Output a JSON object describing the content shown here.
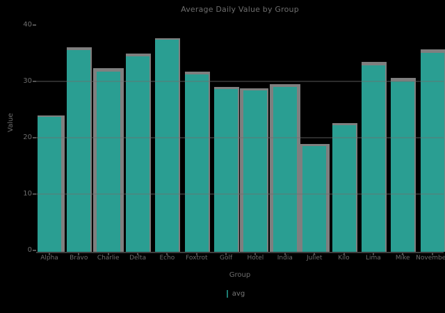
{
  "colors": {
    "background": "#000000",
    "bar_fill": "#2a9e92",
    "bar_shadow": "#7f7f7f",
    "text": "#6e6e6e",
    "axis_line": "#3d3d3d",
    "gridline": "#6e6e6e"
  },
  "chart_data": {
    "type": "bar",
    "title": "Average Daily Value by Group",
    "xlabel": "Group",
    "ylabel": "Value",
    "categories": [
      "Alpha",
      "Bravo",
      "Charlie",
      "Delta",
      "Echo",
      "Foxtrot",
      "Golf",
      "Hotel",
      "India",
      "Juliet",
      "Kilo",
      "Lima",
      "Mike",
      "November"
    ],
    "series": [
      {
        "name": "avg",
        "color": "#2a9e92",
        "values": [
          23.7,
          35.6,
          31.7,
          34.4,
          37.4,
          31.2,
          28.6,
          28.4,
          29.0,
          18.5,
          22.2,
          32.8,
          30.0,
          35.1
        ]
      },
      {
        "name": "shadow",
        "color": "#7f7f7f",
        "values": [
          24.0,
          36.0,
          32.4,
          34.9,
          37.6,
          31.7,
          29.0,
          28.8,
          29.5,
          18.9,
          22.6,
          33.5,
          30.6,
          35.7
        ]
      }
    ],
    "shadow_sides": [
      "right",
      "none",
      "both",
      "none",
      "none",
      "none",
      "none",
      "left",
      "both",
      "both",
      "none",
      "none",
      "none",
      "none"
    ],
    "yticks": [
      0,
      10,
      20,
      30,
      40
    ],
    "ylim": [
      0,
      41
    ],
    "grid": "horizontal, at y=10/20/30, drawn over bars",
    "legend_position": "bottom center",
    "legend": {
      "label": "avg"
    }
  },
  "layout_text": {
    "title": "Average Daily Value by Group",
    "ylabel": "Value",
    "xtitle": "Group",
    "legend_label": "avg"
  }
}
